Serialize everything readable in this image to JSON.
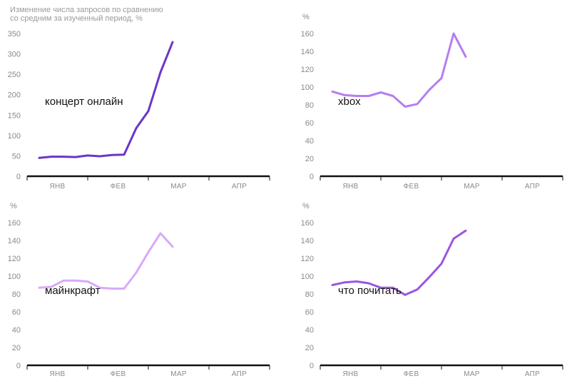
{
  "chart_data": [
    {
      "type": "line",
      "title": "",
      "ylabel": "Изменение числа запросов по сравнению со средним за изученный период, %",
      "ylabel_lines": [
        "Изменение числа запросов по сравнению",
        "со средним за изученный период, %"
      ],
      "series_label": "концерт онлайн",
      "color": "#6a35c8",
      "ylim": [
        0,
        350
      ],
      "yticks": [
        0,
        50,
        100,
        150,
        200,
        250,
        300,
        350
      ],
      "xticks": [
        "ЯНВ",
        "ФЕВ",
        "МАР",
        "АПР"
      ],
      "x": [
        0.2,
        0.4,
        0.6,
        0.8,
        1.0,
        1.2,
        1.4,
        1.6,
        1.8,
        2.0,
        2.2,
        2.4
      ],
      "values": [
        45,
        48,
        48,
        47,
        51,
        49,
        52,
        53,
        118,
        160,
        255,
        329
      ]
    },
    {
      "type": "line",
      "title": "",
      "ylabel": "%",
      "series_label": "xbox",
      "color": "#b57ef0",
      "ylim": [
        0,
        160
      ],
      "yticks": [
        0,
        20,
        40,
        60,
        80,
        100,
        120,
        140,
        160
      ],
      "xticks": [
        "ЯНВ",
        "ФЕВ",
        "МАР",
        "АПР"
      ],
      "x": [
        0.2,
        0.4,
        0.6,
        0.8,
        1.0,
        1.2,
        1.4,
        1.6,
        1.8,
        2.0,
        2.2,
        2.4
      ],
      "values": [
        95,
        91,
        90,
        90,
        94,
        90,
        78,
        81,
        97,
        110,
        160,
        134
      ]
    },
    {
      "type": "line",
      "title": "",
      "ylabel": "%",
      "series_label": "майнкрафт",
      "color": "#d8aaf8",
      "ylim": [
        0,
        160
      ],
      "yticks": [
        0,
        20,
        40,
        60,
        80,
        100,
        120,
        140,
        160
      ],
      "xticks": [
        "ЯНВ",
        "ФЕВ",
        "МАР",
        "АПР"
      ],
      "x": [
        0.2,
        0.4,
        0.6,
        0.8,
        1.0,
        1.2,
        1.4,
        1.6,
        1.8,
        2.0,
        2.2,
        2.4
      ],
      "values": [
        87,
        88,
        95,
        95,
        94,
        87,
        86,
        86,
        104,
        127,
        148,
        133
      ]
    },
    {
      "type": "line",
      "title": "",
      "ylabel": "%",
      "series_label": "что почитать",
      "color": "#9b55e0",
      "ylim": [
        0,
        160
      ],
      "yticks": [
        0,
        20,
        40,
        60,
        80,
        100,
        120,
        140,
        160
      ],
      "xticks": [
        "ЯНВ",
        "ФЕВ",
        "МАР",
        "АПР"
      ],
      "x": [
        0.2,
        0.4,
        0.6,
        0.8,
        1.0,
        1.2,
        1.4,
        1.6,
        1.8,
        2.0,
        2.2,
        2.4
      ],
      "values": [
        90,
        93,
        94,
        92,
        87,
        87,
        79,
        85,
        99,
        114,
        142,
        151
      ]
    }
  ]
}
